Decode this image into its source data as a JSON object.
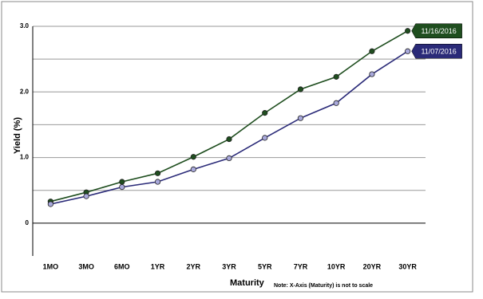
{
  "chart_data": {
    "type": "line",
    "x_label": "Maturity",
    "y_label": "Yield (%)",
    "note": "Note: X-Axis (Maturity) is not to scale",
    "categories": [
      "1MO",
      "3MO",
      "6MO",
      "1YR",
      "2YR",
      "3YR",
      "5YR",
      "7YR",
      "10YR",
      "20YR",
      "30YR"
    ],
    "series": [
      {
        "name": "11/16/2016",
        "color": "#1f4e1f",
        "marker_color": "#1f4e1f",
        "values": [
          0.33,
          0.47,
          0.63,
          0.76,
          1.01,
          1.28,
          1.68,
          2.04,
          2.23,
          2.62,
          2.93
        ]
      },
      {
        "name": "11/07/2016",
        "color": "#2a2a78",
        "marker_color": "#a9a9dc",
        "values": [
          0.29,
          0.41,
          0.55,
          0.63,
          0.82,
          0.99,
          1.3,
          1.6,
          1.83,
          2.27,
          2.62
        ]
      }
    ],
    "ylim": [
      -0.5,
      3.0
    ],
    "yticks": [
      0,
      {
        "value": 1,
        "label": "1.0"
      },
      {
        "value": 2,
        "label": "2.0"
      },
      {
        "value": 3,
        "label": "3.0"
      }
    ],
    "minor_yticks": [
      0.5,
      1.5,
      2.5
    ],
    "grid": true
  }
}
